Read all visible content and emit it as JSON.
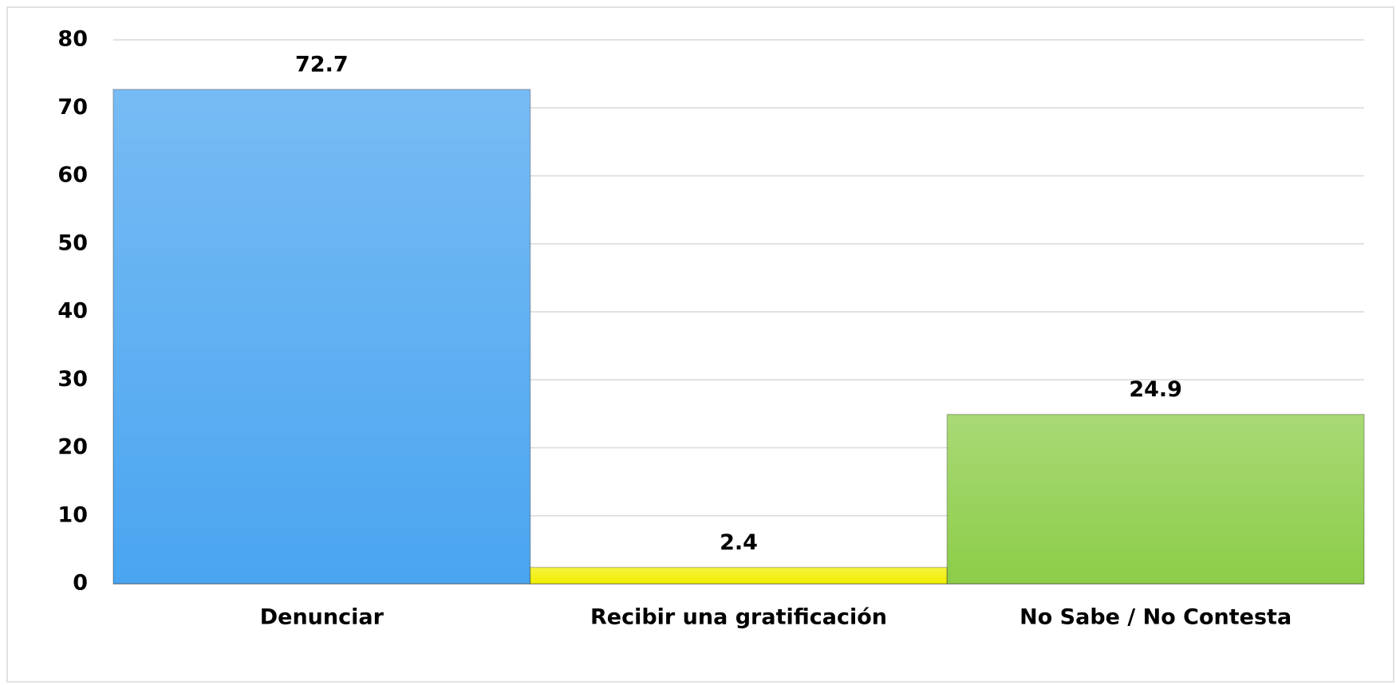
{
  "chart_data": {
    "type": "bar",
    "categories": [
      "Denunciar",
      "Recibir una gratificación",
      "No Sabe / No Contesta"
    ],
    "values": [
      72.7,
      2.4,
      24.9
    ],
    "colors": [
      "#4aa5f0",
      "#f2ee00",
      "#8ccd48"
    ],
    "ylim": [
      0,
      80
    ],
    "yticks": [
      0,
      10,
      20,
      30,
      40,
      50,
      60,
      70,
      80
    ],
    "grid": true
  }
}
